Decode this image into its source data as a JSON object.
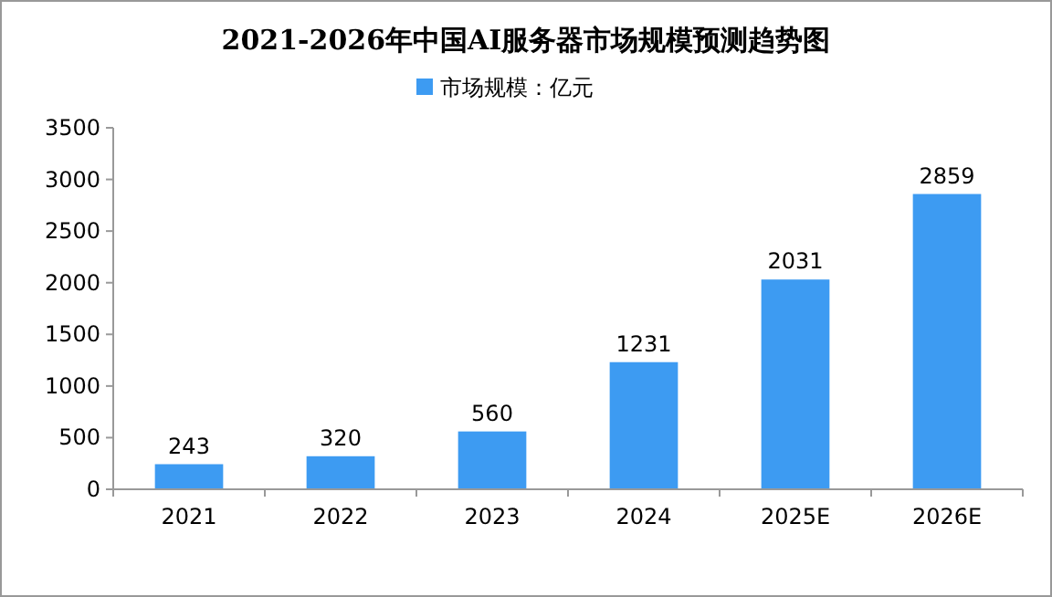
{
  "chart_data": {
    "type": "bar",
    "title": "2021-2026年中国AI服务器市场规模预测趋势图",
    "categories": [
      "2021",
      "2022",
      "2023",
      "2024",
      "2025E",
      "2026E"
    ],
    "series": [
      {
        "name": "市场规模：亿元",
        "color": "#3d9bf2",
        "values": [
          243,
          320,
          560,
          1231,
          2031,
          2859
        ]
      }
    ],
    "ylim": [
      0,
      3500
    ],
    "yticks": [
      0,
      500,
      1000,
      1500,
      2000,
      2500,
      3000,
      3500
    ],
    "data_labels": true,
    "legend": "top",
    "grid": false
  }
}
